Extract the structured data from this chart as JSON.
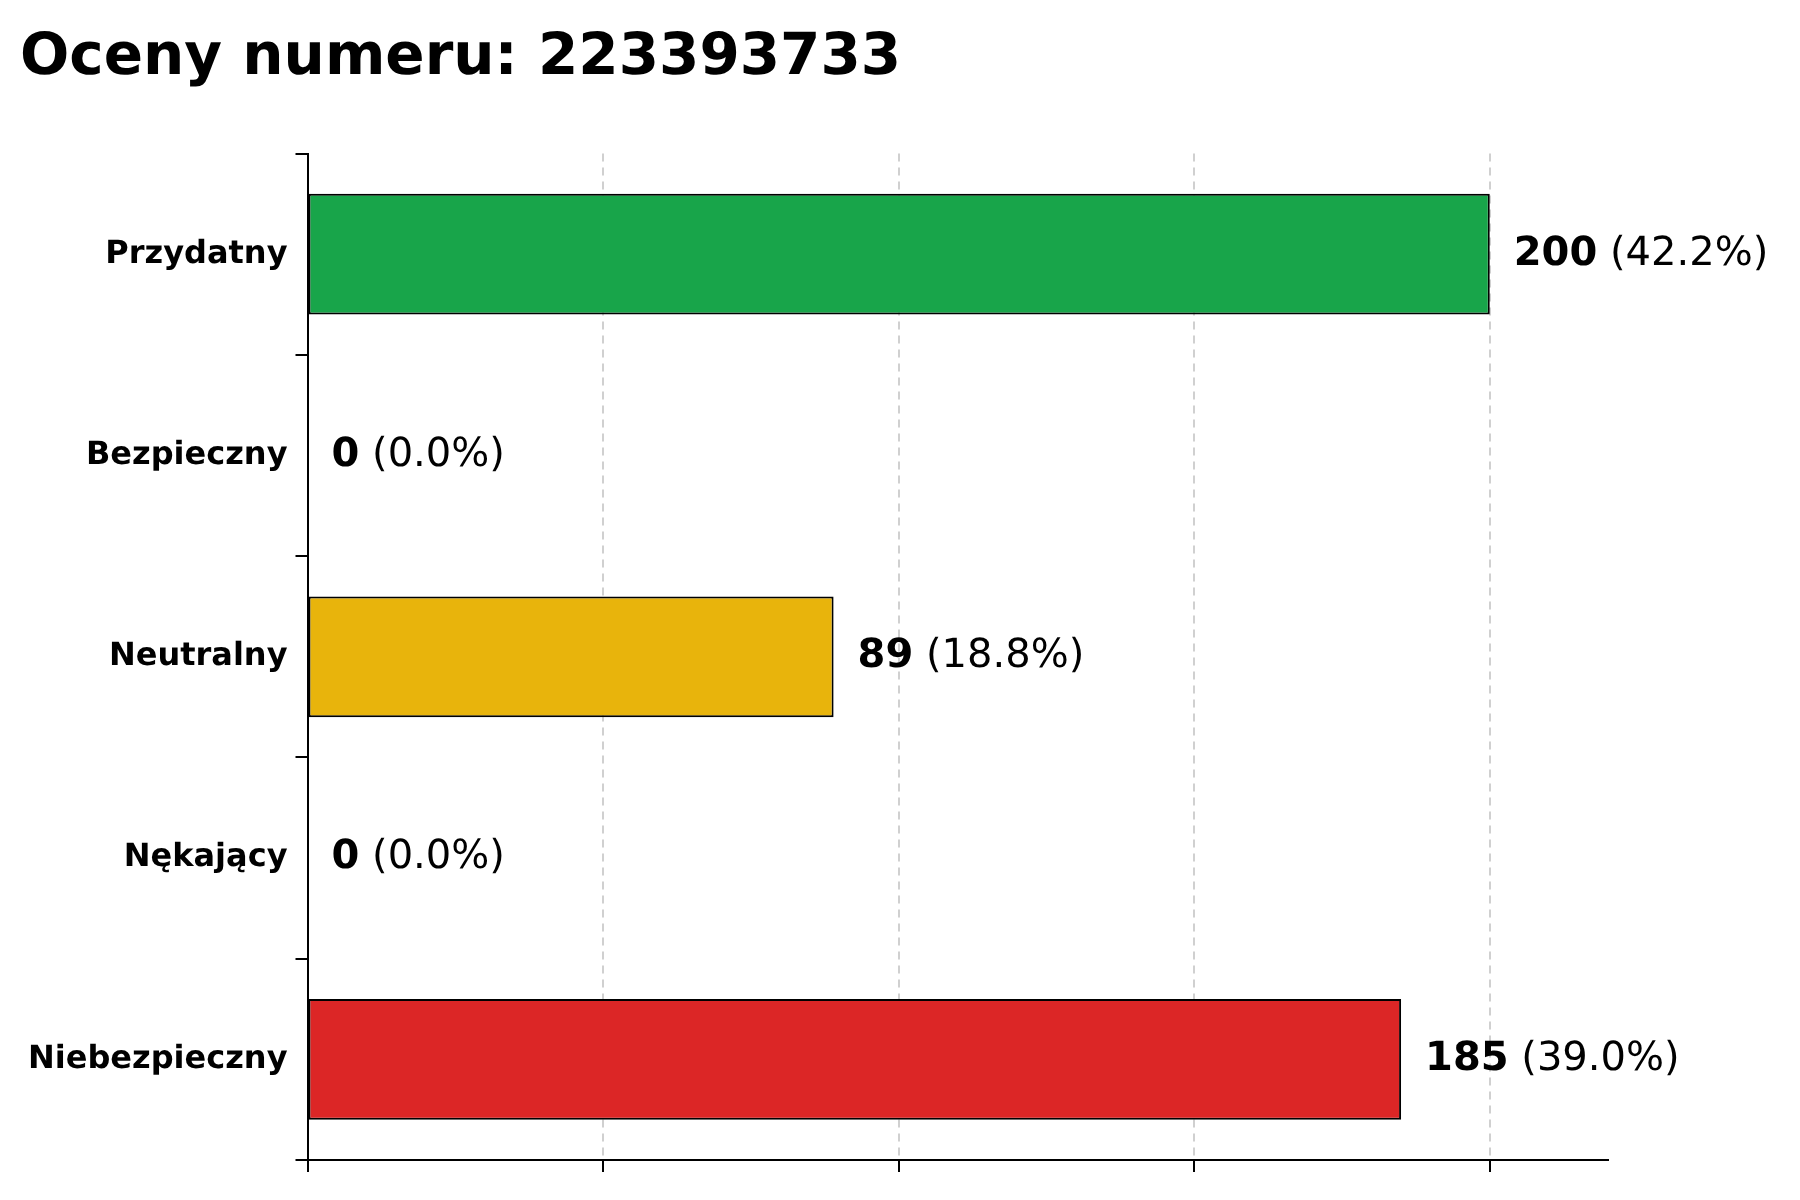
{
  "chart_data": {
    "type": "bar",
    "orientation": "horizontal",
    "title": "Oceny numeru: 223393733",
    "categories": [
      "Przydatny",
      "Bezpieczny",
      "Neutralny",
      "Nękający",
      "Niebezpieczny"
    ],
    "values": [
      200,
      0,
      89,
      0,
      185
    ],
    "colors": [
      "#18a54a",
      "#888888",
      "#e8b40c",
      "#888888",
      "#dc2626"
    ],
    "value_labels": [
      "200 (42.2%)",
      "0 (0.0%)",
      "89 (18.8%)",
      "0 (0.0%)",
      "185 (39.0%)"
    ],
    "xlim": [
      0,
      220
    ],
    "xticks": [
      {
        "value": 0,
        "label": null
      },
      {
        "value": 50,
        "label": null
      },
      {
        "value": 100,
        "label": null
      },
      {
        "value": 150,
        "label": null
      },
      {
        "value": 200,
        "label": null
      }
    ],
    "tick_labels": "y",
    "grid": "x",
    "legend": false
  }
}
